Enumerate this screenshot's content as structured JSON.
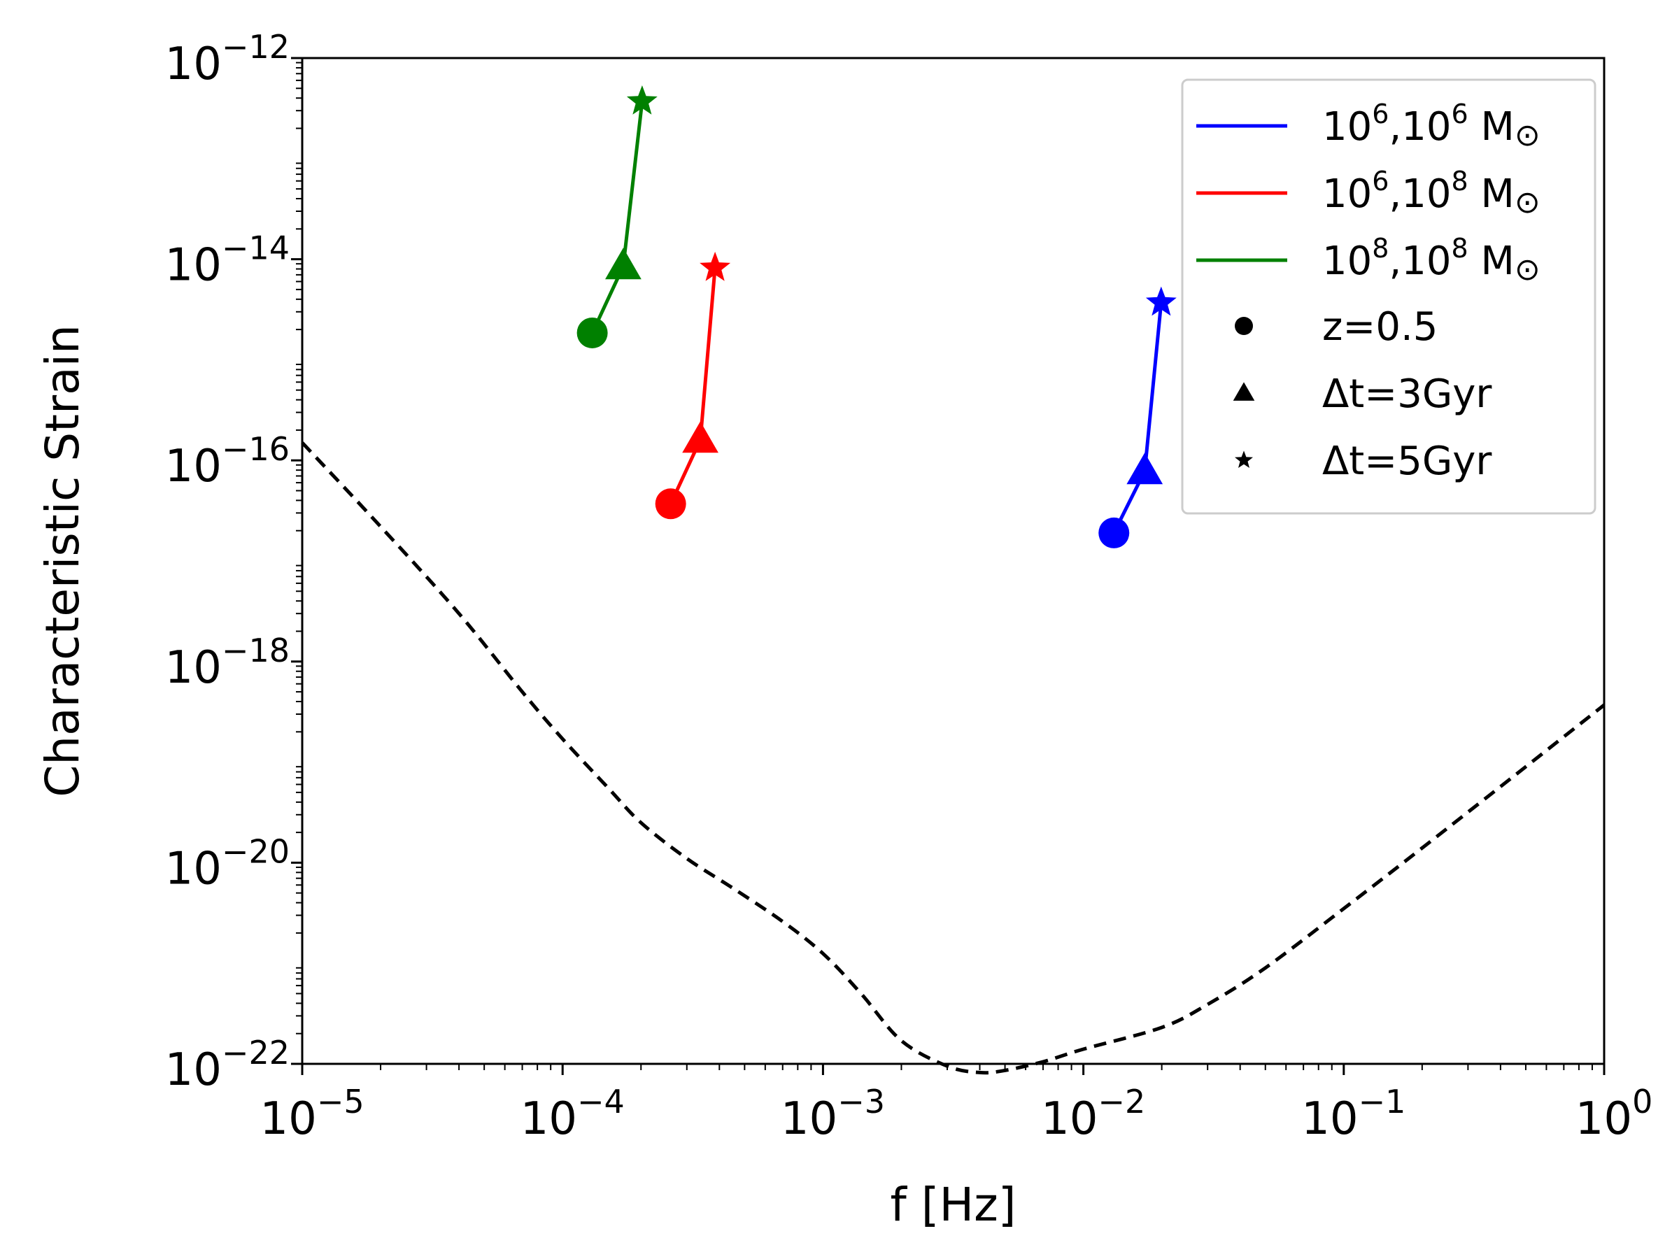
{
  "chart_data": {
    "type": "scatter",
    "title": "",
    "xlabel": "f [Hz]",
    "ylabel": "Characteristic Strain",
    "xscale": "log",
    "yscale": "log",
    "xlim": [
      1e-05,
      1
    ],
    "ylim": [
      1e-22,
      1e-12
    ],
    "x_ticks": [
      {
        "value": 1e-05,
        "base": "10",
        "exp": "−5"
      },
      {
        "value": 0.0001,
        "base": "10",
        "exp": "−4"
      },
      {
        "value": 0.001,
        "base": "10",
        "exp": "−3"
      },
      {
        "value": 0.01,
        "base": "10",
        "exp": "−2"
      },
      {
        "value": 0.1,
        "base": "10",
        "exp": "−1"
      },
      {
        "value": 1,
        "base": "10",
        "exp": "0"
      }
    ],
    "y_ticks": [
      {
        "value": 1e-22,
        "base": "10",
        "exp": "−22"
      },
      {
        "value": 1e-20,
        "base": "10",
        "exp": "−20"
      },
      {
        "value": 1e-18,
        "base": "10",
        "exp": "−18"
      },
      {
        "value": 1e-16,
        "base": "10",
        "exp": "−16"
      },
      {
        "value": 1e-14,
        "base": "10",
        "exp": "−14"
      },
      {
        "value": 1e-12,
        "base": "10",
        "exp": "−12"
      }
    ],
    "series": [
      {
        "name": "10^6,10^6 M☉",
        "label_parts": {
          "a": "10",
          "a_exp": "6",
          "b": ",10",
          "b_exp": "6",
          "unit": " M",
          "sym": "⊙"
        },
        "color": "#0000ff",
        "points": [
          {
            "x": 0.0131,
            "y": 1.9e-17,
            "marker": "circle"
          },
          {
            "x": 0.0172,
            "y": 7.8e-17,
            "marker": "triangle"
          },
          {
            "x": 0.0199,
            "y": 3.7e-15,
            "marker": "star"
          }
        ]
      },
      {
        "name": "10^6,10^8 M☉",
        "label_parts": {
          "a": "10",
          "a_exp": "6",
          "b": ",10",
          "b_exp": "8",
          "unit": " M",
          "sym": "⊙"
        },
        "color": "#ff0000",
        "points": [
          {
            "x": 0.00026,
            "y": 3.7e-17,
            "marker": "circle"
          },
          {
            "x": 0.000338,
            "y": 1.6e-16,
            "marker": "triangle"
          },
          {
            "x": 0.000385,
            "y": 8.2e-15,
            "marker": "star"
          }
        ]
      },
      {
        "name": "10^8,10^8 M☉",
        "label_parts": {
          "a": "10",
          "a_exp": "8",
          "b": ",10",
          "b_exp": "8",
          "unit": " M",
          "sym": "⊙"
        },
        "color": "#008000",
        "points": [
          {
            "x": 0.00013,
            "y": 1.85e-15,
            "marker": "circle"
          },
          {
            "x": 0.000171,
            "y": 8.5e-15,
            "marker": "triangle"
          },
          {
            "x": 0.000202,
            "y": 3.7e-13,
            "marker": "star"
          }
        ]
      }
    ],
    "sensitivity_curve": {
      "name": "sensitivity",
      "style": "dashed",
      "color": "#000000",
      "points": [
        [
          1e-05,
          1.5e-16
        ],
        [
          2e-05,
          2.2e-17
        ],
        [
          4e-05,
          3e-18
        ],
        [
          7e-05,
          5e-19
        ],
        [
          0.0001,
          1.7e-19
        ],
        [
          0.00015,
          5.5e-20
        ],
        [
          0.0002,
          2.5e-20
        ],
        [
          0.0003,
          1.1e-20
        ],
        [
          0.00045,
          5.6e-21
        ],
        [
          0.0007,
          2.6e-21
        ],
        [
          0.001,
          1.25e-21
        ],
        [
          0.0014,
          5e-22
        ],
        [
          0.002,
          1.7e-22
        ],
        [
          0.003,
          9.5e-23
        ],
        [
          0.004,
          8.2e-23
        ],
        [
          0.005,
          8.6e-23
        ],
        [
          0.007,
          1.05e-22
        ],
        [
          0.01,
          1.4e-22
        ],
        [
          0.02,
          2.3e-22
        ],
        [
          0.03,
          3.9e-22
        ],
        [
          0.05,
          9e-22
        ],
        [
          0.1,
          3.5e-21
        ],
        [
          0.2,
          1.4e-20
        ],
        [
          0.5,
          9e-20
        ],
        [
          1,
          3.7e-19
        ]
      ]
    },
    "legend": {
      "position": "top-right",
      "marker_entries": [
        {
          "marker": "circle",
          "label": "z=0.5"
        },
        {
          "marker": "triangle",
          "label": "Δt=3Gyr"
        },
        {
          "marker": "star",
          "label": "Δt=5Gyr"
        }
      ]
    }
  }
}
